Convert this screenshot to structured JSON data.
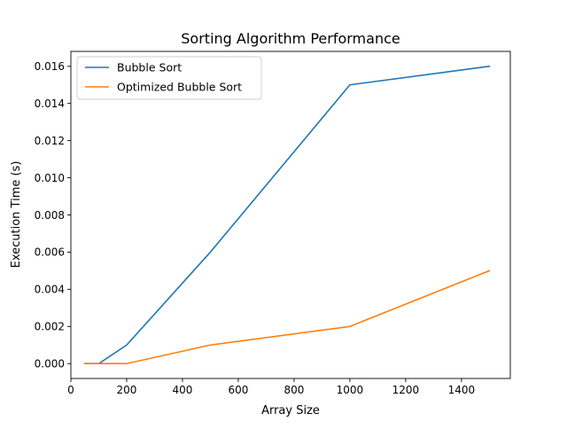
{
  "chart_data": {
    "type": "line",
    "title": "Sorting Algorithm Performance",
    "xlabel": "Array Size",
    "ylabel": "Execution Time (s)",
    "xlim": [
      0,
      1575
    ],
    "ylim": [
      -0.0008,
      0.0168
    ],
    "xticks": [
      0,
      200,
      400,
      600,
      800,
      1000,
      1200,
      1400
    ],
    "xtick_labels": [
      "0",
      "200",
      "400",
      "600",
      "800",
      "1000",
      "1200",
      "1400"
    ],
    "yticks": [
      0.0,
      0.002,
      0.004,
      0.006,
      0.008,
      0.01,
      0.012,
      0.014,
      0.016
    ],
    "ytick_labels": [
      "0.000",
      "0.002",
      "0.004",
      "0.006",
      "0.008",
      "0.010",
      "0.012",
      "0.014",
      "0.016"
    ],
    "grid": false,
    "legend_position": "top-left",
    "series": [
      {
        "name": "Bubble Sort",
        "color": "#1f77b4",
        "x": [
          50,
          100,
          200,
          500,
          1000,
          1500
        ],
        "y": [
          0.0,
          0.0,
          0.001,
          0.006,
          0.015,
          0.016
        ]
      },
      {
        "name": "Optimized Bubble Sort",
        "color": "#ff7f0e",
        "x": [
          50,
          100,
          200,
          500,
          1000,
          1500
        ],
        "y": [
          0.0,
          0.0,
          0.0,
          0.001,
          0.002,
          0.005
        ]
      }
    ]
  }
}
